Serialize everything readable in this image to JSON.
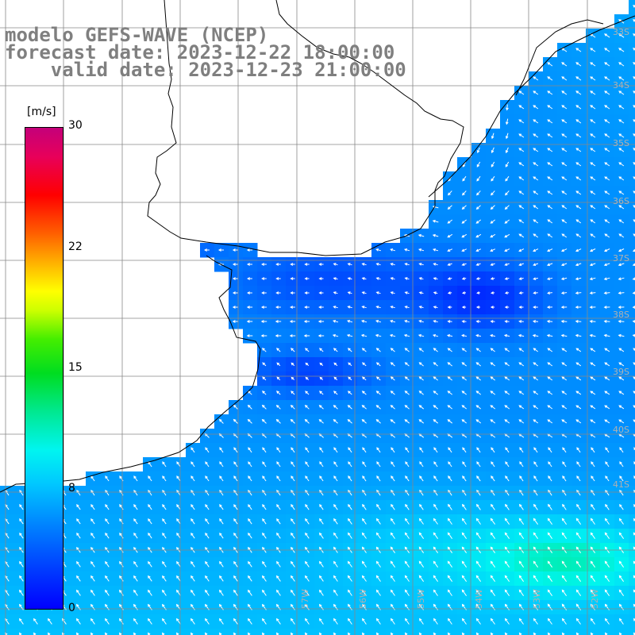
{
  "title": {
    "line1": "modelo GEFS-WAVE (NCEP)",
    "line2": "forecast date: 2023-12-22 18:00:00",
    "line3": "    valid date: 2023-12-23 21:00:00"
  },
  "colorbar": {
    "unit": "[m/s]",
    "ticks": [
      "30",
      "22",
      "15",
      "8",
      "0"
    ],
    "range": [
      0,
      30
    ]
  },
  "grid_labels": {
    "lat": [
      "33S",
      "34S",
      "35S",
      "36S",
      "37S",
      "38S",
      "39S",
      "40S",
      "41S"
    ],
    "lon": [
      "57W",
      "56W",
      "55W",
      "54W",
      "53W",
      "52W"
    ]
  },
  "colors": {
    "land": "#ffffff",
    "gridline": "#888888",
    "coastline": "#000000",
    "arrow": "#ffffff",
    "title_text": "#7f7f7f"
  },
  "field": {
    "variable": "wind speed",
    "units": "m/s"
  }
}
